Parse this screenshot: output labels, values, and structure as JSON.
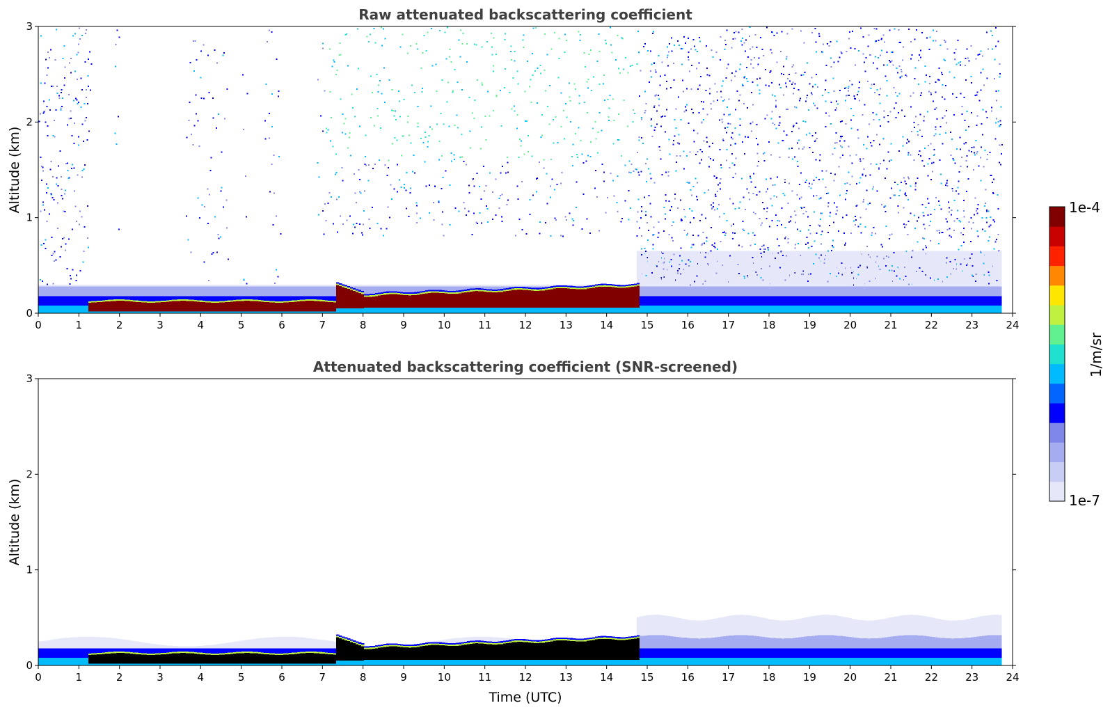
{
  "chart_data": [
    {
      "type": "heatmap",
      "title": "Raw attenuated backscattering coefficient",
      "xlabel": "",
      "ylabel": "Altitude (km)",
      "xlim": [
        0,
        24
      ],
      "ylim": [
        0,
        3
      ],
      "x_ticks": [
        "0",
        "1",
        "2",
        "3",
        "4",
        "5",
        "6",
        "7",
        "8",
        "9",
        "10",
        "11",
        "12",
        "13",
        "14",
        "15",
        "16",
        "17",
        "18",
        "19",
        "20",
        "21",
        "22",
        "23",
        "24"
      ],
      "y_ticks": [
        "0",
        "1",
        "2",
        "3"
      ],
      "features": {
        "fog_layer_hours": [
          1.2,
          7.3
        ],
        "fog_top_km": 0.12,
        "elevated_cloud_hours": [
          7.3,
          14.7
        ],
        "elevated_cloud_top_km": [
          0.28,
          0.2
        ],
        "boundary_layer_top_km": 0.25,
        "noise_present_above_km": 0.5
      }
    },
    {
      "type": "heatmap",
      "title": "Attenuated backscattering coefficient (SNR-screened)",
      "xlabel": "Time (UTC)",
      "ylabel": "Altitude (km)",
      "xlim": [
        0,
        24
      ],
      "ylim": [
        0,
        3
      ],
      "x_ticks": [
        "0",
        "1",
        "2",
        "3",
        "4",
        "5",
        "6",
        "7",
        "8",
        "9",
        "10",
        "11",
        "12",
        "13",
        "14",
        "15",
        "16",
        "17",
        "18",
        "19",
        "20",
        "21",
        "22",
        "23",
        "24"
      ],
      "y_ticks": [
        "0",
        "1",
        "2",
        "3"
      ]
    }
  ],
  "colorbar": {
    "min_label": "1e-7",
    "max_label": "1e-4",
    "unit_label": "1/m/sr",
    "scale": "log",
    "range": [
      1e-07,
      0.0001
    ],
    "colormap": [
      "#e6e8fa",
      "#c8cdf5",
      "#a5acf0",
      "#7f88ea",
      "#0000ff",
      "#0066ff",
      "#00bbff",
      "#20e0d0",
      "#60f090",
      "#c0f040",
      "#ffe600",
      "#ff8800",
      "#ff2200",
      "#c80000",
      "#800000"
    ]
  }
}
